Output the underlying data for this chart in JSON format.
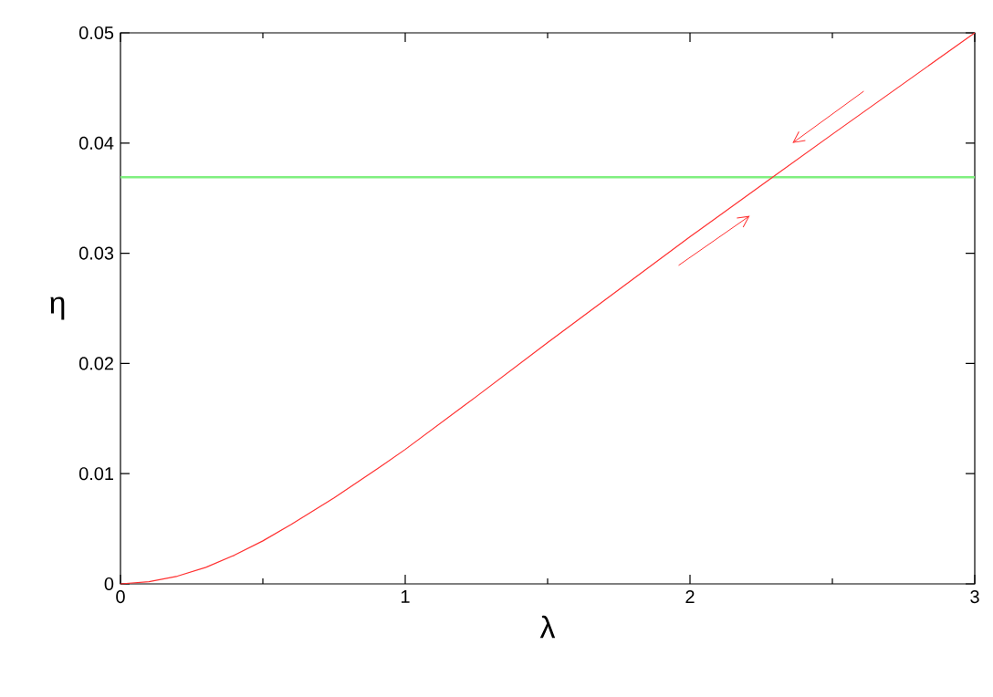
{
  "chart_data": {
    "type": "line",
    "xlabel": "λ",
    "ylabel": "η",
    "x": [
      0,
      0.1,
      0.2,
      0.3,
      0.4,
      0.5,
      0.6,
      0.75,
      0.9,
      1,
      1.25,
      1.5,
      1.75,
      2,
      2.29,
      2.5,
      2.75,
      3
    ],
    "series": [
      {
        "color": "#ff3030",
        "values": [
          0,
          0.0002,
          0.0007,
          0.0015,
          0.0026,
          0.0039,
          0.0054,
          0.0078,
          0.0104,
          0.0122,
          0.017,
          0.0219,
          0.0267,
          0.0315,
          0.0369,
          0.0408,
          0.0454,
          0.05
        ]
      }
    ],
    "xlim": [
      0,
      3
    ],
    "ylim": [
      0,
      0.05
    ],
    "xticks": [
      0,
      1,
      2,
      3
    ],
    "yticks": [
      0,
      0.01,
      0.02,
      0.03,
      0.04,
      0.05
    ],
    "ref_lines": [
      {
        "axis": "y",
        "value": 0.0369,
        "color": "#80f080"
      }
    ]
  }
}
